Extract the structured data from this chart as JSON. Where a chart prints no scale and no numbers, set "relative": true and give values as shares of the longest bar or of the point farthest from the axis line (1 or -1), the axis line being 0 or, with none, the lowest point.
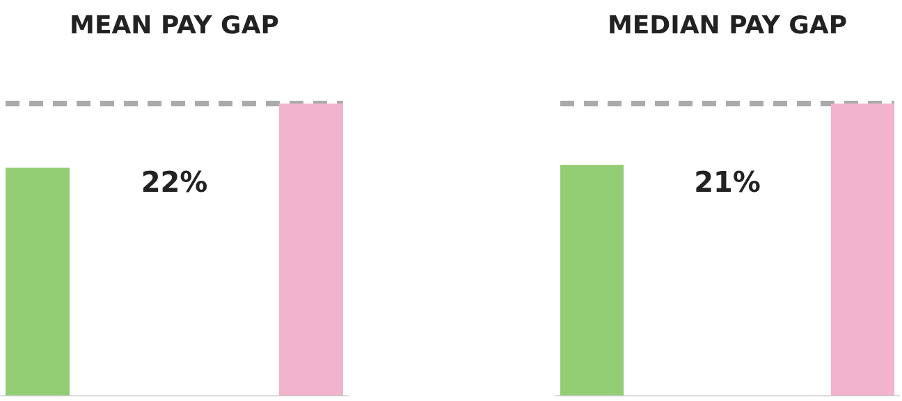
{
  "chart_data": [
    {
      "type": "bar",
      "title": "MEAN PAY GAP",
      "categories": [
        null,
        null
      ],
      "values": [
        0.78,
        1
      ],
      "colors": [
        "#92cd73",
        "#f2b3cd"
      ],
      "relative": true,
      "ref_lines": [
        {
          "axis": "y",
          "value": 1,
          "color": "#aaaaab",
          "line_style": "dashed"
        }
      ],
      "annotations": [
        "22%"
      ]
    },
    {
      "type": "bar",
      "title": "MEDIAN PAY GAP",
      "categories": [
        null,
        null
      ],
      "values": [
        0.79,
        1
      ],
      "colors": [
        "#92cd73",
        "#f2b3cd"
      ],
      "relative": true,
      "ref_lines": [
        {
          "axis": "y",
          "value": 1,
          "color": "#aaaaab",
          "line_style": "dashed"
        }
      ],
      "annotations": [
        "21%"
      ]
    }
  ]
}
